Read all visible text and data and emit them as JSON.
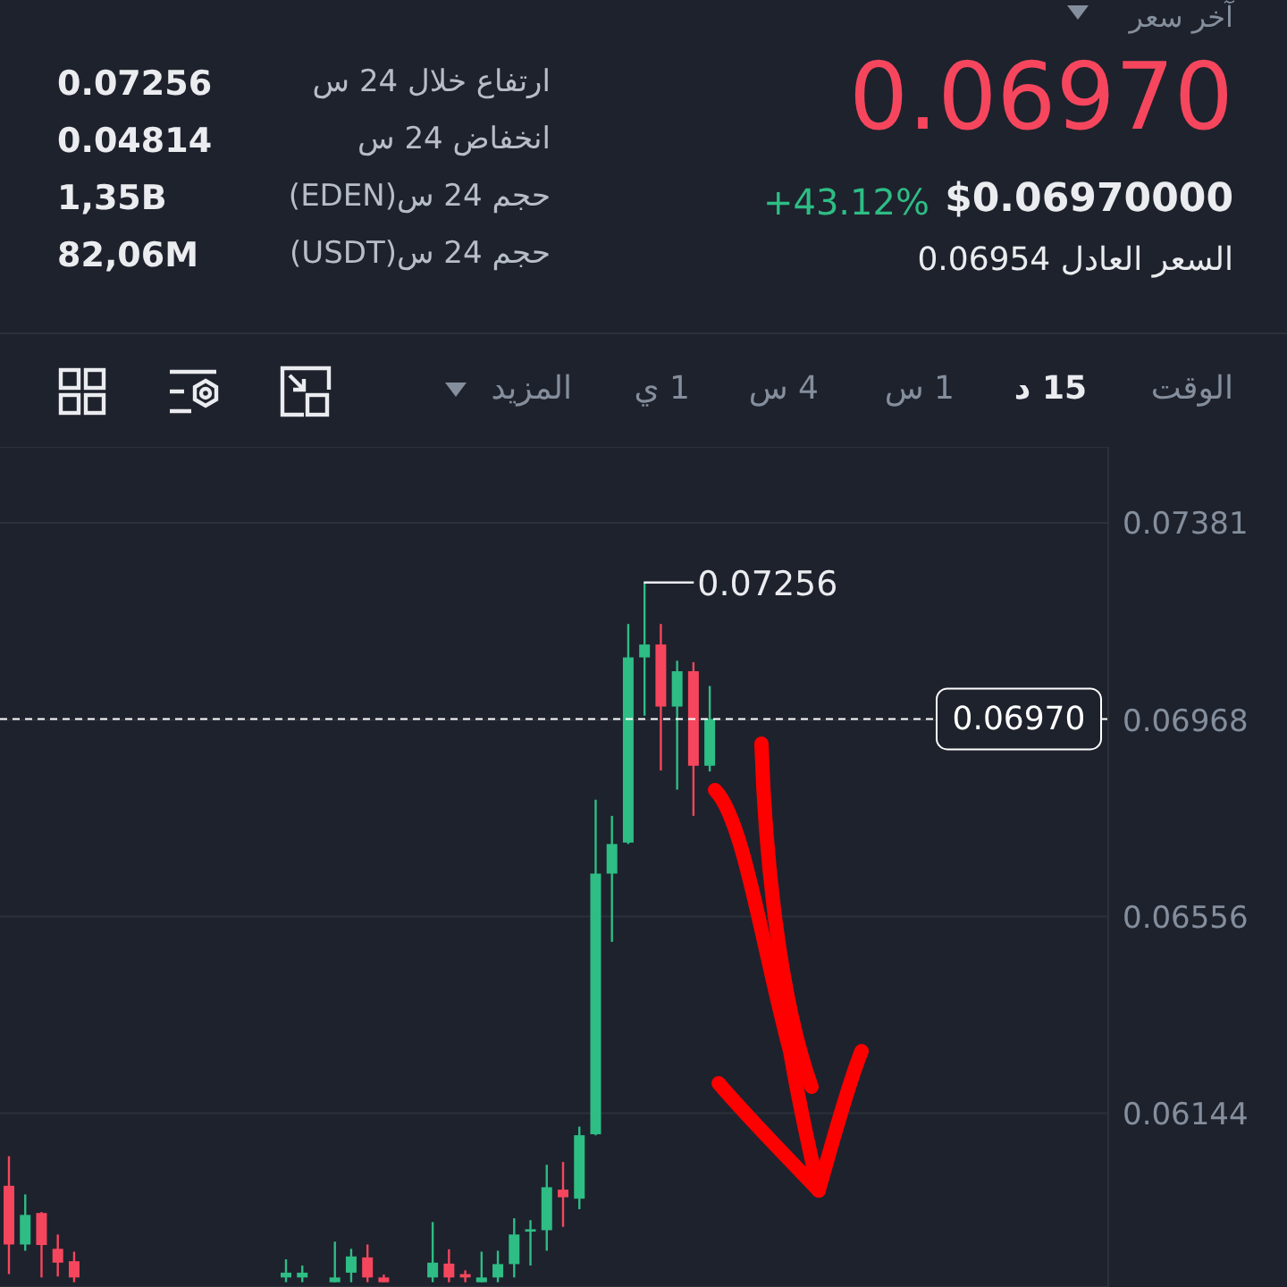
{
  "chart_data": {
    "type": "candlestick",
    "annotations": [
      "آخر سعر",
      "0.06970",
      "+43.12%",
      "$0.06970000",
      "السعر العادل 0.06954",
      "ارتفاع خلال 24 س",
      "0.07256",
      "انخفاض 24 س",
      "0.04814",
      "حجم 24 س(EDEN)",
      "1,35B",
      "حجم 24 س(USDT)",
      "82,06M",
      "الوقت",
      "15 د",
      "1 س",
      "4 س",
      "1 ي",
      "المزيد",
      "0.07256"
    ],
    "colors": [
      "#f6465d",
      "#2ebd85",
      "#f6465d",
      "#f6465d",
      "#f6465d",
      null,
      null,
      null,
      null,
      null,
      null,
      null,
      null,
      null,
      null,
      null,
      null,
      "#2ebd85",
      "#2ebd85",
      null,
      "#2ebd85",
      "#2ebd85",
      "#f6465d",
      "#f6465d",
      null,
      null,
      "#2ebd85",
      "#f6465d",
      "#f6465d",
      "#2ebd85",
      "#2ebd85",
      "#2ebd85",
      "#2ebd85",
      "#2ebd85",
      "#f6465d",
      "#2ebd85",
      "#2ebd85",
      "#2ebd85",
      "#2ebd85",
      "#2ebd85",
      "#f6465d",
      "#2ebd85",
      "#f6465d",
      "#2ebd85",
      null,
      null,
      null,
      null,
      null,
      null,
      null,
      null,
      null,
      null,
      null,
      null,
      null,
      null,
      null,
      null,
      null,
      null,
      null,
      null,
      null,
      null,
      null,
      null
    ],
    "categories": [
      null,
      null,
      null,
      null,
      null,
      null,
      null,
      null,
      null,
      null,
      null,
      null,
      null,
      null,
      null,
      null,
      null,
      null,
      null,
      null,
      null,
      null,
      null,
      null,
      null,
      null,
      null,
      null,
      null,
      null,
      null,
      null,
      null,
      null,
      null,
      null,
      null,
      null,
      null,
      null,
      null,
      null,
      null,
      null,
      null,
      null,
      null,
      null,
      null,
      null,
      null,
      null,
      null,
      null,
      null,
      null,
      null,
      null,
      null,
      null,
      null,
      null,
      null,
      null,
      null,
      null,
      null,
      null
    ],
    "ohlc": [
      [
        0.05992,
        0.06054,
        0.05807,
        0.05869
      ],
      [
        0.05869,
        0.05974,
        0.05856,
        0.05931
      ],
      [
        0.05935,
        0.05937,
        0.058,
        0.05868
      ],
      [
        0.0586,
        0.0589,
        0.05802,
        0.05831
      ],
      [
        0.05834,
        0.05854,
        0.0579,
        0.058
      ],
      null,
      null,
      null,
      null,
      null,
      null,
      null,
      null,
      null,
      null,
      null,
      null,
      [
        0.058,
        0.05838,
        0.0579,
        0.0581
      ],
      [
        0.058,
        0.05825,
        0.0579,
        0.0581
      ],
      null,
      [
        0.0579,
        0.05875,
        0.0579,
        0.058
      ],
      [
        0.0581,
        0.0586,
        0.0579,
        0.05844
      ],
      [
        0.05842,
        0.05869,
        0.0579,
        0.058
      ],
      [
        0.058,
        0.05806,
        0.0579,
        0.0579
      ],
      null,
      null,
      [
        0.058,
        0.05916,
        0.0579,
        0.05831
      ],
      [
        0.05829,
        0.05859,
        0.0579,
        0.058
      ],
      [
        0.05807,
        0.05815,
        0.0579,
        0.058
      ],
      [
        0.0579,
        0.05854,
        0.0579,
        0.058
      ],
      [
        0.058,
        0.05856,
        0.0579,
        0.05828
      ],
      [
        0.05828,
        0.05924,
        0.058,
        0.0589
      ],
      [
        0.05896,
        0.0592,
        0.05825,
        0.05901
      ],
      [
        0.05899,
        0.06036,
        0.05856,
        0.05989
      ],
      [
        0.05984,
        0.06042,
        0.05906,
        0.05968
      ],
      [
        0.05965,
        0.06116,
        0.05943,
        0.06098
      ],
      [
        0.061,
        0.06801,
        0.06098,
        0.06646
      ],
      [
        0.06646,
        0.06767,
        0.06503,
        0.06708
      ],
      [
        0.06711,
        0.07169,
        0.06708,
        0.07099
      ],
      [
        0.07099,
        0.07256,
        0.06977,
        0.07126
      ],
      [
        0.07126,
        0.07169,
        0.06862,
        0.06996
      ],
      [
        0.06996,
        0.07092,
        0.06822,
        0.0707
      ],
      [
        0.0707,
        0.07089,
        0.06767,
        0.06872
      ],
      [
        0.06872,
        0.07039,
        0.0686,
        0.0697
      ],
      null,
      null,
      null,
      null,
      null,
      null,
      null,
      null,
      null,
      null,
      null,
      null,
      null,
      null,
      null,
      null,
      null,
      null,
      null,
      null,
      null,
      null,
      null,
      null
    ],
    "ylim": [
      0.0578,
      0.0754
    ],
    "yticks": [
      0.06144,
      0.06556,
      0.06968,
      0.07381
    ],
    "ref_lines": [
      {
        "axis": "y",
        "value": 0.0697,
        "label": "0.06970",
        "color": "#ffffff",
        "line_style": "dashed"
      }
    ],
    "grid": "y",
    "tick_labels": "y"
  }
}
